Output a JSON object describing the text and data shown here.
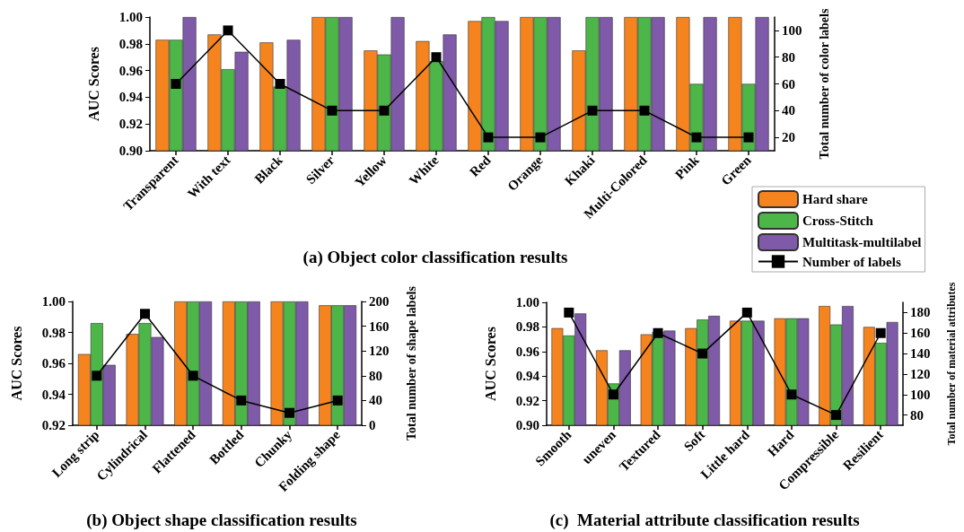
{
  "chart_data": [
    {
      "type": "bar",
      "title": "(a) Object color classification results",
      "ylabel": "AUC Scores",
      "y2label": "Total number of color labels",
      "categories": [
        "Transparent",
        "With text",
        "Black",
        "Silver",
        "Yellow",
        "White",
        "Red",
        "Orange",
        "Khaki",
        "Multi-Colored",
        "Pink",
        "Green"
      ],
      "series": [
        {
          "name": "Hard share",
          "color": "#f5841f",
          "values": [
            0.983,
            0.987,
            0.981,
            1.0,
            0.975,
            0.982,
            0.997,
            1.0,
            0.975,
            1.0,
            1.0,
            1.0
          ]
        },
        {
          "name": "Cross-Stitch",
          "color": "#4cb649",
          "values": [
            0.983,
            0.961,
            0.948,
            1.0,
            0.972,
            0.967,
            1.0,
            1.0,
            1.0,
            1.0,
            0.95,
            0.95
          ]
        },
        {
          "name": "Multitask-multilabel",
          "color": "#7f5aa8",
          "values": [
            1.0,
            0.974,
            0.983,
            1.0,
            1.0,
            0.987,
            0.997,
            1.0,
            1.0,
            1.0,
            1.0,
            1.0
          ]
        },
        {
          "name": "Number of labels",
          "type": "line",
          "axis": "y2",
          "marker": "square",
          "color": "#000000",
          "values": [
            60,
            100,
            60,
            40,
            40,
            80,
            20,
            20,
            40,
            40,
            20,
            20
          ]
        }
      ],
      "ylim": [
        0.9,
        1.0
      ],
      "yticks": [
        {
          "value": 0.9,
          "label": "0.90"
        },
        {
          "value": 0.92,
          "label": "0.92"
        },
        {
          "value": 0.94,
          "label": "0.94"
        },
        {
          "value": 0.96,
          "label": "0.96"
        },
        {
          "value": 0.98,
          "label": "0.98"
        },
        {
          "value": 1.0,
          "label": "1.00"
        }
      ],
      "y2lim": [
        10,
        110
      ],
      "y2ticks": [
        20,
        40,
        60,
        80,
        100
      ],
      "legend": "bottom right",
      "grid": false
    },
    {
      "type": "bar",
      "title": "(b) Object shape classification results",
      "ylabel": "AUC Scores",
      "y2label": "Total number of shape labels",
      "categories": [
        "Long strip",
        "Cylindrical",
        "Flattened",
        "Bottled",
        "Chunky",
        "Folding shape"
      ],
      "series": [
        {
          "color": "#f5841f",
          "values": [
            0.966,
            0.979,
            1.0,
            1.0,
            1.0,
            0.9975
          ]
        },
        {
          "color": "#4cb649",
          "values": [
            0.986,
            0.986,
            1.0,
            1.0,
            1.0,
            0.9975
          ]
        },
        {
          "color": "#7f5aa8",
          "values": [
            0.959,
            0.977,
            1.0,
            1.0,
            1.0,
            0.9975
          ]
        },
        {
          "type": "line",
          "axis": "y2",
          "marker": "square",
          "color": "#000000",
          "values": [
            80,
            180,
            80,
            40,
            20,
            40
          ]
        }
      ],
      "ylim": [
        0.92,
        1.0
      ],
      "yticks": [
        {
          "value": 0.92,
          "label": "0.92"
        },
        {
          "value": 0.94,
          "label": "0.94"
        },
        {
          "value": 0.96,
          "label": "0.96"
        },
        {
          "value": 0.98,
          "label": "0.98"
        },
        {
          "value": 1.0,
          "label": "1.00"
        }
      ],
      "y2lim": [
        0,
        200
      ],
      "y2ticks": [
        0,
        40,
        80,
        120,
        160,
        200
      ],
      "legend": false,
      "grid": false
    },
    {
      "type": "bar",
      "title": "(c)  Material attribute classification results",
      "ylabel": "AUC Scores",
      "y2label": "Total number of material attributes",
      "categories": [
        "Smooth",
        "uneven",
        "Textured",
        "Soft",
        "Little hard",
        "Hard",
        "Compressible",
        "Resilient"
      ],
      "series": [
        {
          "color": "#f5841f",
          "values": [
            0.979,
            0.961,
            0.974,
            0.979,
            0.985,
            0.987,
            0.997,
            0.98
          ]
        },
        {
          "color": "#4cb649",
          "values": [
            0.973,
            0.934,
            0.976,
            0.986,
            0.985,
            0.987,
            0.982,
            0.967
          ]
        },
        {
          "color": "#7f5aa8",
          "values": [
            0.991,
            0.961,
            0.977,
            0.989,
            0.985,
            0.987,
            0.997,
            0.984
          ]
        },
        {
          "type": "line",
          "axis": "y2",
          "marker": "square",
          "color": "#000000",
          "values": [
            180,
            100,
            160,
            140,
            180,
            100,
            80,
            160
          ]
        }
      ],
      "ylim": [
        0.9,
        1.0
      ],
      "yticks": [
        {
          "value": 0.9,
          "label": "0.90"
        },
        {
          "value": 0.92,
          "label": "0.92"
        },
        {
          "value": 0.94,
          "label": "0.94"
        },
        {
          "value": 0.96,
          "label": "0.96"
        },
        {
          "value": 0.98,
          "label": "0.98"
        },
        {
          "value": 1.0,
          "label": "1.00"
        }
      ],
      "y2lim": [
        70,
        190
      ],
      "y2ticks": [
        80,
        100,
        120,
        140,
        160,
        180
      ],
      "legend": false,
      "grid": false
    }
  ]
}
